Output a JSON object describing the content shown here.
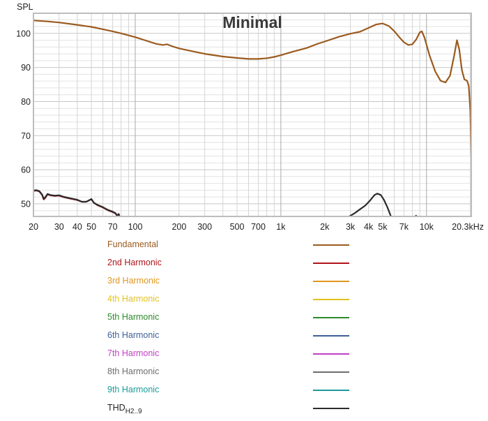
{
  "chart_data": {
    "type": "line",
    "title": "Minimal",
    "xlabel": "Hz",
    "ylabel": "SPL",
    "xscale": "log",
    "xlim": [
      20,
      20300
    ],
    "ylim": [
      46.3,
      105.9
    ],
    "x_ticks": [
      {
        "value": 20,
        "label": "20"
      },
      {
        "value": 30,
        "label": "30"
      },
      {
        "value": 40,
        "label": "40"
      },
      {
        "value": 50,
        "label": "50"
      },
      {
        "value": 70,
        "label": "70"
      },
      {
        "value": 100,
        "label": "100"
      },
      {
        "value": 200,
        "label": "200"
      },
      {
        "value": 300,
        "label": "300"
      },
      {
        "value": 500,
        "label": "500"
      },
      {
        "value": 700,
        "label": "700"
      },
      {
        "value": 1000,
        "label": "1k"
      },
      {
        "value": 2000,
        "label": "2k"
      },
      {
        "value": 3000,
        "label": "3k"
      },
      {
        "value": 4000,
        "label": "4k"
      },
      {
        "value": 5000,
        "label": "5k"
      },
      {
        "value": 7000,
        "label": "7k"
      },
      {
        "value": 10000,
        "label": "10k"
      },
      {
        "value": 20300,
        "label": "20.3kHz"
      }
    ],
    "y_ticks": [
      50,
      60,
      70,
      80,
      90,
      100
    ],
    "grid": true,
    "legend_position": "bottom",
    "series": [
      {
        "name": "Fundamental",
        "color": "#9b5a1e",
        "points": [
          [
            20,
            103.8
          ],
          [
            25,
            103.5
          ],
          [
            30,
            103.2
          ],
          [
            40,
            102.5
          ],
          [
            50,
            101.9
          ],
          [
            60,
            101.2
          ],
          [
            70,
            100.6
          ],
          [
            80,
            100.0
          ],
          [
            100,
            98.9
          ],
          [
            120,
            97.8
          ],
          [
            140,
            96.9
          ],
          [
            155,
            96.6
          ],
          [
            165,
            96.8
          ],
          [
            180,
            96.2
          ],
          [
            200,
            95.6
          ],
          [
            250,
            94.7
          ],
          [
            300,
            94.0
          ],
          [
            400,
            93.2
          ],
          [
            500,
            92.8
          ],
          [
            600,
            92.5
          ],
          [
            700,
            92.5
          ],
          [
            800,
            92.7
          ],
          [
            900,
            93.1
          ],
          [
            1000,
            93.6
          ],
          [
            1200,
            94.6
          ],
          [
            1500,
            95.7
          ],
          [
            1800,
            97.0
          ],
          [
            2000,
            97.6
          ],
          [
            2500,
            99.0
          ],
          [
            3000,
            99.9
          ],
          [
            3500,
            100.5
          ],
          [
            4000,
            101.6
          ],
          [
            4500,
            102.6
          ],
          [
            5000,
            102.9
          ],
          [
            5500,
            102.2
          ],
          [
            6000,
            100.7
          ],
          [
            6500,
            98.9
          ],
          [
            7000,
            97.4
          ],
          [
            7500,
            96.6
          ],
          [
            8000,
            96.8
          ],
          [
            8500,
            98.2
          ],
          [
            9000,
            100.3
          ],
          [
            9300,
            100.6
          ],
          [
            9700,
            98.7
          ],
          [
            10500,
            93.5
          ],
          [
            11500,
            88.8
          ],
          [
            12500,
            86.1
          ],
          [
            13500,
            85.6
          ],
          [
            14500,
            87.6
          ],
          [
            15500,
            93.5
          ],
          [
            16200,
            98.0
          ],
          [
            16800,
            95.3
          ],
          [
            17500,
            89.3
          ],
          [
            18200,
            86.5
          ],
          [
            19000,
            86.1
          ],
          [
            19500,
            84.6
          ],
          [
            20000,
            77.5
          ],
          [
            20300,
            64.2
          ]
        ]
      },
      {
        "name": "2nd Harmonic",
        "color": "#b0141a",
        "points": [
          [
            20,
            53.8
          ],
          [
            21,
            53.9
          ],
          [
            22,
            53.6
          ],
          [
            23,
            52.5
          ],
          [
            23.5,
            51.3
          ],
          [
            24,
            51.6
          ],
          [
            25,
            52.8
          ],
          [
            26,
            52.5
          ],
          [
            28,
            52.3
          ],
          [
            30,
            52.4
          ],
          [
            32,
            52.0
          ],
          [
            35,
            51.6
          ],
          [
            40,
            51.1
          ],
          [
            43,
            50.6
          ],
          [
            46,
            50.6
          ],
          [
            48,
            51.0
          ],
          [
            50,
            51.4
          ],
          [
            52,
            50.3
          ],
          [
            55,
            49.6
          ],
          [
            60,
            48.9
          ],
          [
            65,
            48.1
          ],
          [
            70,
            47.6
          ],
          [
            73,
            47.2
          ],
          [
            75,
            46.5
          ],
          [
            77,
            47.0
          ],
          [
            78,
            46.3
          ]
        ]
      },
      {
        "name": "THD",
        "color": "#2b2b2b",
        "segments": [
          [
            [
              20,
              53.9
            ],
            [
              21,
              54.0
            ],
            [
              22,
              53.7
            ],
            [
              23,
              52.6
            ],
            [
              23.5,
              51.5
            ],
            [
              24,
              51.8
            ],
            [
              25,
              52.9
            ],
            [
              26,
              52.6
            ],
            [
              28,
              52.4
            ],
            [
              30,
              52.5
            ],
            [
              32,
              52.1
            ],
            [
              35,
              51.7
            ],
            [
              40,
              51.2
            ],
            [
              43,
              50.6
            ],
            [
              46,
              50.6
            ],
            [
              48,
              51.0
            ],
            [
              50,
              51.4
            ],
            [
              52,
              50.3
            ],
            [
              55,
              49.7
            ],
            [
              60,
              49.0
            ],
            [
              65,
              48.2
            ],
            [
              70,
              47.7
            ],
            [
              73,
              47.3
            ],
            [
              75,
              46.6
            ],
            [
              77,
              47.0
            ],
            [
              78,
              46.3
            ]
          ],
          [
            [
              2950,
              46.3
            ],
            [
              3200,
              47.2
            ],
            [
              3500,
              48.4
            ],
            [
              3800,
              49.5
            ],
            [
              4100,
              51.0
            ],
            [
              4400,
              52.6
            ],
            [
              4600,
              53.0
            ],
            [
              4850,
              52.6
            ],
            [
              5100,
              51.2
            ],
            [
              5400,
              48.9
            ],
            [
              5700,
              46.3
            ]
          ],
          [
            [
              8400,
              46.4
            ],
            [
              8500,
              46.5
            ]
          ]
        ]
      }
    ]
  },
  "legend": {
    "items": [
      {
        "label": "Fundamental",
        "color": "#9b5a1e"
      },
      {
        "label": "2nd Harmonic",
        "color": "#b0141a"
      },
      {
        "label": "3rd Harmonic",
        "color": "#e0961e"
      },
      {
        "label": "4th Harmonic",
        "color": "#e3c21c"
      },
      {
        "label": "5th Harmonic",
        "color": "#2c8a2c"
      },
      {
        "label": "6th Harmonic",
        "color": "#3f5f9a"
      },
      {
        "label": "7th Harmonic",
        "color": "#c33fc6"
      },
      {
        "label": "8th Harmonic",
        "color": "#6e6e6e"
      },
      {
        "label": "9th Harmonic",
        "color": "#1d9a9a"
      },
      {
        "label": "THD",
        "subscript": "H2..9",
        "color": "#2b2b2b"
      }
    ]
  }
}
